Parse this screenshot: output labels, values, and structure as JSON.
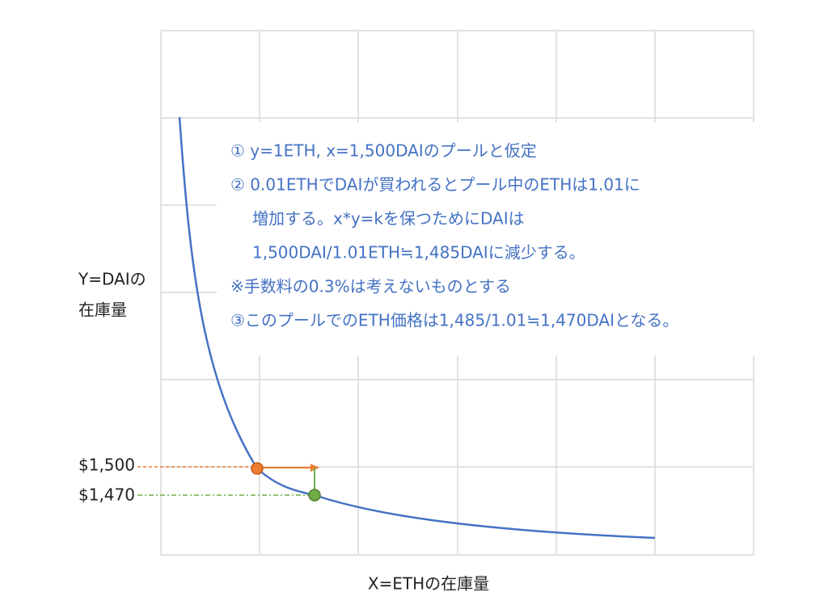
{
  "y_axis_label": [
    "Y=DAIの",
    "在庫量"
  ],
  "price_labels": [
    "$1,500",
    "$1,470"
  ],
  "x_axis_label": "X=ETHの在庫量",
  "notes": [
    "① y=1ETH, x=1,500DAIのプールと仮定",
    "② 0.01ETHでDAIが買われるとプール中のETHは1.01に",
    "増加する。x*y=kを保つためにDAIは",
    "1,500DAI/1.01ETH≒1,485DAIに減少する。",
    "※手数料の0.3%は考えないものとする",
    "③このプールでのETH価格は1,485/1.01≒1,470DAIとなる。"
  ]
}
